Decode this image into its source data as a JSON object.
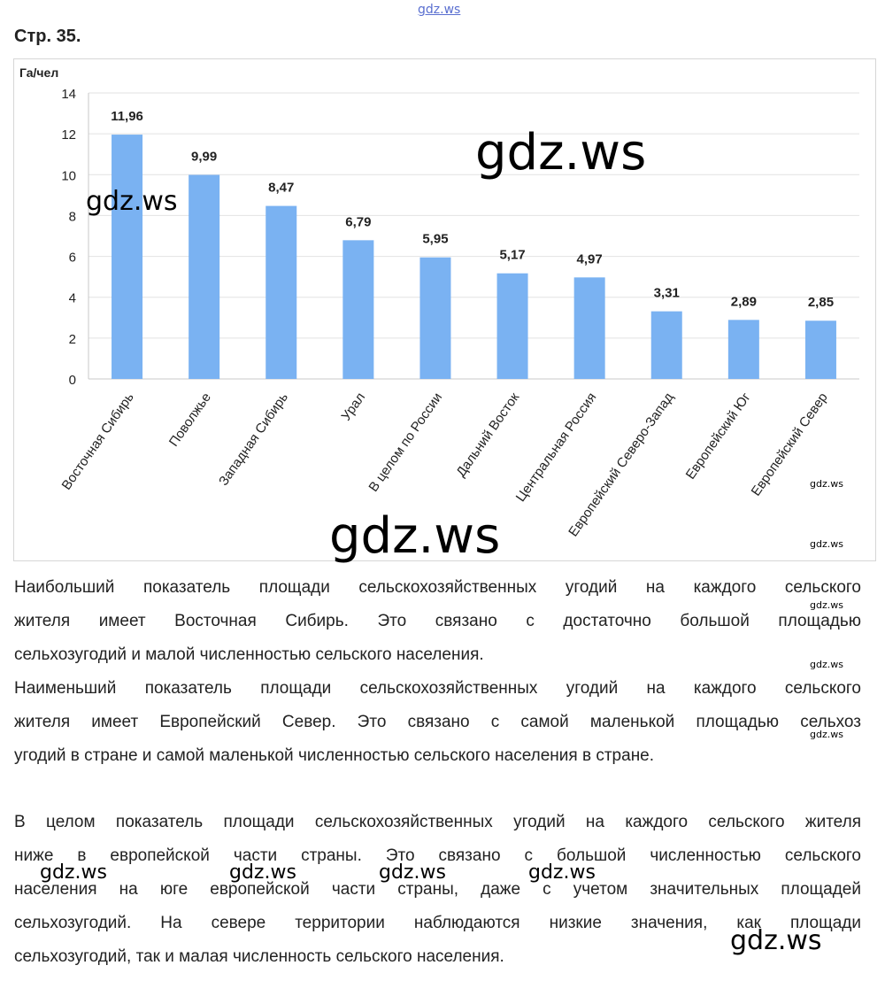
{
  "watermark": "gdz.ws",
  "page_title": "Стр. 35.",
  "chart_data": {
    "type": "bar",
    "ylabel": "Га/чел",
    "ylim": [
      0,
      14
    ],
    "yticks": [
      0,
      2,
      4,
      6,
      8,
      10,
      12,
      14
    ],
    "grid": true,
    "categories": [
      "Восточная Сибирь",
      "Поволжье",
      "Западная Сибирь",
      "Урал",
      "В целом по России",
      "Дальний Восток",
      "Центральная Россия",
      "Европейский Северо-Запад",
      "Европейский Юг",
      "Европейский Север"
    ],
    "values": [
      11.96,
      9.99,
      8.47,
      6.79,
      5.95,
      5.17,
      4.97,
      3.31,
      2.89,
      2.85
    ],
    "data_labels": [
      "11,96",
      "9,99",
      "8,47",
      "6,79",
      "5,95",
      "5,17",
      "4,97",
      "3,31",
      "2,89",
      "2,85"
    ],
    "bar_color": "#7ab2f2"
  },
  "paragraphs": [
    [
      "Наибольший показатель площади сельскохозяйственных угодий на каждого сельского",
      "жителя имеет Восточная Сибирь. Это связано с достаточно большой площадью",
      "сельхозугодий и малой численностью сельского населения."
    ],
    [
      "Наименьший показатель площади сельскохозяйственных угодий на каждого сельского",
      "жителя имеет Европейский Север. Это связано с самой маленькой площадью сельхоз",
      "угодий в стране и самой маленькой численностью сельского населения в стране."
    ],
    [
      "В целом показатель площади сельскохозяйственных угодий на каждого сельского жителя",
      "ниже в европейской части страны. Это связано с большой численностью сельского",
      "населения на юге европейской части страны, даже с учетом значительных площадей",
      "сельхозугодий. На севере территории наблюдаются низкие значения, как площади",
      "сельхозугодий, так и малая численность сельского населения."
    ]
  ]
}
